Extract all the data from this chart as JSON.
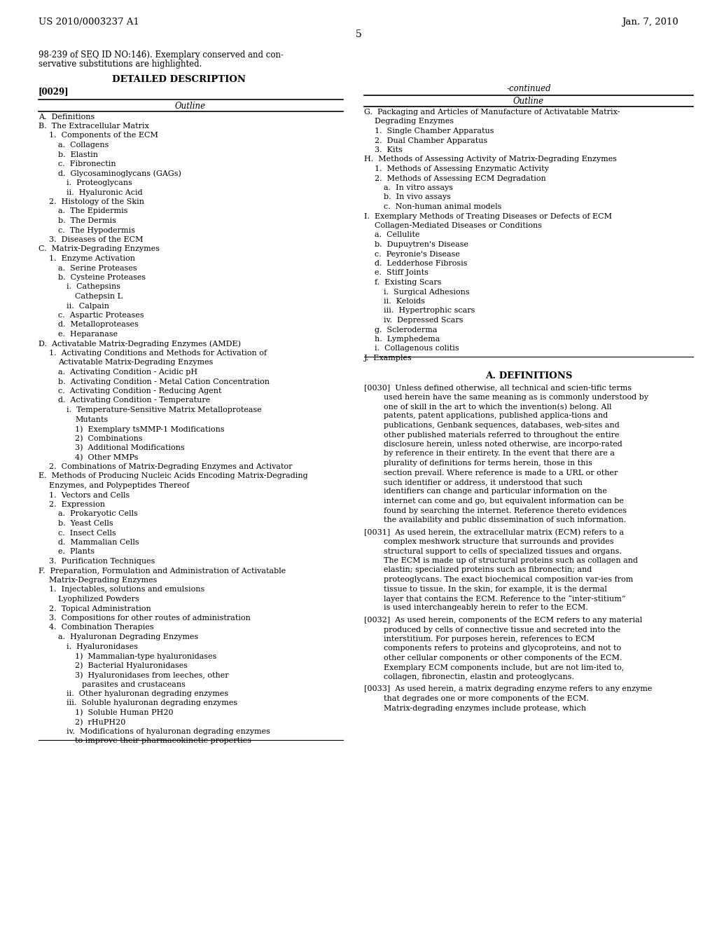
{
  "page_number": "5",
  "header_left": "US 2010/0003237 A1",
  "header_right": "Jan. 7, 2010",
  "bg_color": "#ffffff",
  "left_col": {
    "intro_text": [
      "98-239 of SEQ ID NO:146). Exemplary conserved and con-",
      "servative substitutions are highlighted."
    ],
    "section_title": "DETAILED DESCRIPTION",
    "paragraph_label": "[0029]",
    "outline_header": "Outline",
    "outline_lines": [
      {
        "indent": 0,
        "text": "A.  Definitions"
      },
      {
        "indent": 0,
        "text": "B.  The Extracellular Matrix"
      },
      {
        "indent": 1,
        "text": "1.  Components of the ECM"
      },
      {
        "indent": 2,
        "text": "a.  Collagens"
      },
      {
        "indent": 2,
        "text": "b.  Elastin"
      },
      {
        "indent": 2,
        "text": "c.  Fibronectin"
      },
      {
        "indent": 2,
        "text": "d.  Glycosaminoglycans (GAGs)"
      },
      {
        "indent": 3,
        "text": "i.  Proteoglycans"
      },
      {
        "indent": 3,
        "text": "ii.  Hyaluronic Acid"
      },
      {
        "indent": 1,
        "text": "2.  Histology of the Skin"
      },
      {
        "indent": 2,
        "text": "a.  The Epidermis"
      },
      {
        "indent": 2,
        "text": "b.  The Dermis"
      },
      {
        "indent": 2,
        "text": "c.  The Hypodermis"
      },
      {
        "indent": 1,
        "text": "3.  Diseases of the ECM"
      },
      {
        "indent": 0,
        "text": "C.  Matrix-Degrading Enzymes"
      },
      {
        "indent": 1,
        "text": "1.  Enzyme Activation"
      },
      {
        "indent": 2,
        "text": "a.  Serine Proteases"
      },
      {
        "indent": 2,
        "text": "b.  Cysteine Proteases"
      },
      {
        "indent": 3,
        "text": "i.  Cathepsins"
      },
      {
        "indent": 4,
        "text": "Cathepsin L"
      },
      {
        "indent": 3,
        "text": "ii.  Calpain"
      },
      {
        "indent": 2,
        "text": "c.  Aspartic Proteases"
      },
      {
        "indent": 2,
        "text": "d.  Metalloproteases"
      },
      {
        "indent": 2,
        "text": "e.  Heparanase"
      },
      {
        "indent": 0,
        "text": "D.  Activatable Matrix-Degrading Enzymes (AMDE)"
      },
      {
        "indent": 1,
        "text": "1.  Activating Conditions and Methods for Activation of"
      },
      {
        "indent": 2,
        "text": "Activatable Matrix-Degrading Enzymes"
      },
      {
        "indent": 2,
        "text": "a.  Activating Condition - Acidic pH"
      },
      {
        "indent": 2,
        "text": "b.  Activating Condition - Metal Cation Concentration"
      },
      {
        "indent": 2,
        "text": "c.  Activating Condition - Reducing Agent"
      },
      {
        "indent": 2,
        "text": "d.  Activating Condition - Temperature"
      },
      {
        "indent": 3,
        "text": "i.  Temperature-Sensitive Matrix Metalloprotease"
      },
      {
        "indent": 4,
        "text": "Mutants"
      },
      {
        "indent": 4,
        "text": "1)  Exemplary tsMMP-1 Modifications"
      },
      {
        "indent": 4,
        "text": "2)  Combinations"
      },
      {
        "indent": 4,
        "text": "3)  Additional Modifications"
      },
      {
        "indent": 4,
        "text": "4)  Other MMPs"
      },
      {
        "indent": 1,
        "text": "2.  Combinations of Matrix-Degrading Enzymes and Activator"
      },
      {
        "indent": 0,
        "text": "E.  Methods of Producing Nucleic Acids Encoding Matrix-Degrading"
      },
      {
        "indent": 1,
        "text": "Enzymes, and Polypeptides Thereof"
      },
      {
        "indent": 1,
        "text": "1.  Vectors and Cells"
      },
      {
        "indent": 1,
        "text": "2.  Expression"
      },
      {
        "indent": 2,
        "text": "a.  Prokaryotic Cells"
      },
      {
        "indent": 2,
        "text": "b.  Yeast Cells"
      },
      {
        "indent": 2,
        "text": "c.  Insect Cells"
      },
      {
        "indent": 2,
        "text": "d.  Mammalian Cells"
      },
      {
        "indent": 2,
        "text": "e.  Plants"
      },
      {
        "indent": 1,
        "text": "3.  Purification Techniques"
      },
      {
        "indent": 0,
        "text": "F.  Preparation, Formulation and Administration of Activatable"
      },
      {
        "indent": 1,
        "text": "Matrix-Degrading Enzymes"
      },
      {
        "indent": 1,
        "text": "1.  Injectables, solutions and emulsions"
      },
      {
        "indent": 2,
        "text": "Lyophilized Powders"
      },
      {
        "indent": 1,
        "text": "2.  Topical Administration"
      },
      {
        "indent": 1,
        "text": "3.  Compositions for other routes of administration"
      },
      {
        "indent": 1,
        "text": "4.  Combination Therapies"
      },
      {
        "indent": 2,
        "text": "a.  Hyaluronan Degrading Enzymes"
      },
      {
        "indent": 3,
        "text": "i.  Hyaluronidases"
      },
      {
        "indent": 4,
        "text": "1)  Mammalian-type hyaluronidases"
      },
      {
        "indent": 4,
        "text": "2)  Bacterial Hyaluronidases"
      },
      {
        "indent": 4,
        "text": "3)  Hyaluronidases from leeches, other"
      },
      {
        "indent": 5,
        "text": "parasites and crustaceans"
      },
      {
        "indent": 3,
        "text": "ii.  Other hyaluronan degrading enzymes"
      },
      {
        "indent": 3,
        "text": "iii.  Soluble hyaluronan degrading enzymes"
      },
      {
        "indent": 4,
        "text": "1)  Soluble Human PH20"
      },
      {
        "indent": 4,
        "text": "2)  rHuPH20"
      },
      {
        "indent": 3,
        "text": "iv.  Modifications of hyaluronan degrading enzymes"
      },
      {
        "indent": 4,
        "text": "to improve their pharmacokinetic properties"
      }
    ]
  },
  "right_col": {
    "continued_label": "-continued",
    "outline_header": "Outline",
    "outline_lines": [
      {
        "indent": 0,
        "text": "G.  Packaging and Articles of Manufacture of Activatable Matrix-"
      },
      {
        "indent": 1,
        "text": "Degrading Enzymes"
      },
      {
        "indent": 1,
        "text": "1.  Single Chamber Apparatus"
      },
      {
        "indent": 1,
        "text": "2.  Dual Chamber Apparatus"
      },
      {
        "indent": 1,
        "text": "3.  Kits"
      },
      {
        "indent": 0,
        "text": "H.  Methods of Assessing Activity of Matrix-Degrading Enzymes"
      },
      {
        "indent": 1,
        "text": "1.  Methods of Assessing Enzymatic Activity"
      },
      {
        "indent": 1,
        "text": "2.  Methods of Assessing ECM Degradation"
      },
      {
        "indent": 2,
        "text": "a.  In vitro assays"
      },
      {
        "indent": 2,
        "text": "b.  In vivo assays"
      },
      {
        "indent": 2,
        "text": "c.  Non-human animal models"
      },
      {
        "indent": 0,
        "text": "I.  Exemplary Methods of Treating Diseases or Defects of ECM"
      },
      {
        "indent": 1,
        "text": "Collagen-Mediated Diseases or Conditions"
      },
      {
        "indent": 1,
        "text": "a.  Cellulite"
      },
      {
        "indent": 1,
        "text": "b.  Dupuytren's Disease"
      },
      {
        "indent": 1,
        "text": "c.  Peyronie's Disease"
      },
      {
        "indent": 1,
        "text": "d.  Ledderhose Fibrosis"
      },
      {
        "indent": 1,
        "text": "e.  Stiff Joints"
      },
      {
        "indent": 1,
        "text": "f.  Existing Scars"
      },
      {
        "indent": 2,
        "text": "i.  Surgical Adhesions"
      },
      {
        "indent": 2,
        "text": "ii.  Keloids"
      },
      {
        "indent": 2,
        "text": "iii.  Hypertrophic scars"
      },
      {
        "indent": 2,
        "text": "iv.  Depressed Scars"
      },
      {
        "indent": 1,
        "text": "g.  Scleroderma"
      },
      {
        "indent": 1,
        "text": "h.  Lymphedema"
      },
      {
        "indent": 1,
        "text": "i.  Collagenous colitis"
      },
      {
        "indent": 0,
        "text": "J.  Examples"
      }
    ],
    "section_header": "A. DEFINITIONS",
    "paragraphs": [
      {
        "label": "[0030]",
        "text": "Unless defined otherwise, all technical and scien-tific terms used herein have the same meaning as is commonly understood by one of skill in the art to which the invention(s) belong. All patents, patent applications, published applica-tions and publications, Genbank sequences, databases, web-sites and other published materials referred to throughout the entire disclosure herein, unless noted otherwise, are incorpo-rated by reference in their entirety. In the event that there are a plurality of definitions for terms herein, those in this section prevail. Where reference is made to a URL or other such identifier or address, it understood that such identifiers can change and particular information on the internet can come and go, but equivalent information can be found by searching the internet. Reference thereto evidences the availability and public dissemination of such information."
      },
      {
        "label": "[0031]",
        "text": "As used herein, the extracellular matrix (ECM) refers to a complex meshwork structure that surrounds and provides structural support to cells of specialized tissues and organs. The ECM is made up of structural proteins such as collagen and elastin; specialized proteins such as fibronectin; and proteoglycans. The exact biochemical composition var-ies from tissue to tissue. In the skin, for example, it is the dermal layer that contains the ECM. Reference to the “inter-stitium” is used interchangeably herein to refer to the ECM."
      },
      {
        "label": "[0032]",
        "text": "As used herein, components of the ECM refers to any material produced by cells of connective tissue and secreted into the interstitium. For purposes herein, references to ECM components refers to proteins and glycoproteins, and not to other cellular components or other components of the ECM. Exemplary ECM components include, but are not lim-ited to, collagen, fibronectin, elastin and proteoglycans."
      },
      {
        "label": "[0033]",
        "text": "As used herein, a matrix degrading enzyme refers to any enzyme that degrades one or more components of the ECM. Matrix-degrading enzymes include protease, which"
      }
    ]
  }
}
